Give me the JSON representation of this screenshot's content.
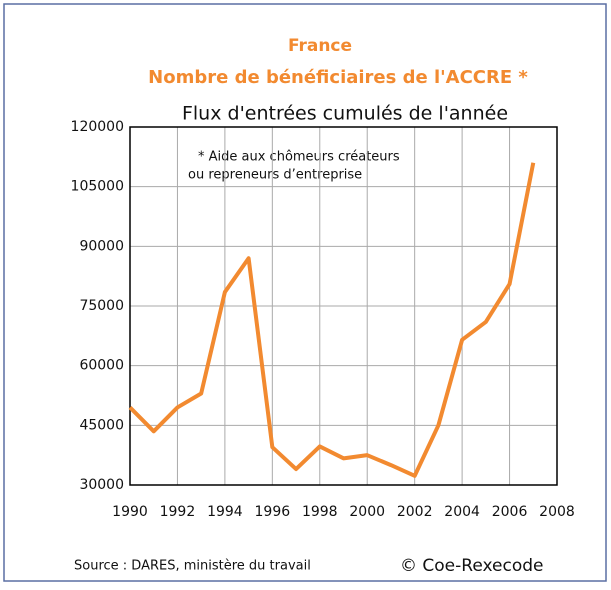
{
  "chart_data": {
    "type": "line",
    "title": "France",
    "subtitle": "Nombre de bénéficiaires de l'ACCRE *",
    "y_label": "Flux d'entrées cumulés de l'année",
    "annotation": [
      "* Aide aux chômeurs créateurs",
      "ou repreneurs d’entreprise"
    ],
    "source": "Source : DARES, ministère du travail",
    "copyright": "© Coe-Rexecode",
    "x": [
      1990,
      1991,
      1992,
      1993,
      1994,
      1995,
      1996,
      1997,
      1998,
      1999,
      2000,
      2001,
      2002,
      2003,
      2004,
      2005,
      2006,
      2007
    ],
    "series": [
      {
        "name": "ACCRE",
        "color": "#f28a30",
        "values": [
          49500,
          43500,
          49500,
          53000,
          78500,
          87000,
          39500,
          34000,
          39700,
          36700,
          37500,
          35000,
          32300,
          45000,
          66500,
          71000,
          80500,
          111000
        ]
      }
    ],
    "xlim": [
      1990,
      2008
    ],
    "xticks": [
      1990,
      1992,
      1994,
      1996,
      1998,
      2000,
      2002,
      2004,
      2006,
      2008
    ],
    "ylim": [
      30000,
      120000
    ],
    "yticks": [
      30000,
      45000,
      60000,
      75000,
      90000,
      105000,
      120000
    ],
    "grid": true
  }
}
